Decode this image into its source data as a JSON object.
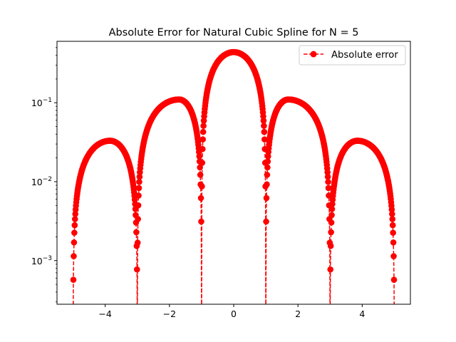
{
  "chart_data": {
    "type": "line",
    "title": "Absolute Error for Natural Cubic Spline for N = 5",
    "xlabel": "",
    "ylabel": "",
    "xlim": [
      -5.5,
      5.5
    ],
    "ylim": [
      0.00028,
      0.6
    ],
    "yscale": "log",
    "grid": false,
    "legend_position": "top-right",
    "x_ticks": [
      {
        "value": -4,
        "label": "−4"
      },
      {
        "value": -2,
        "label": "−2"
      },
      {
        "value": 0,
        "label": "0"
      },
      {
        "value": 2,
        "label": "2"
      },
      {
        "value": 4,
        "label": "4"
      }
    ],
    "y_ticks": [
      {
        "value": 0.001,
        "base": "10",
        "exp": "−3"
      },
      {
        "value": 0.01,
        "base": "10",
        "exp": "−2"
      },
      {
        "value": 0.1,
        "base": "10",
        "exp": "−1"
      }
    ],
    "series": [
      {
        "name": "Absolute error",
        "color": "#ff0000",
        "line_style": "dashed",
        "marker": "circle",
        "nodes": [
          -5,
          -3,
          -1,
          1,
          3,
          5
        ],
        "lobes": [
          {
            "from": -5,
            "to": -3,
            "peak_x": -3.85,
            "peak_y": 0.033
          },
          {
            "from": -3,
            "to": -1,
            "peak_x": -1.7,
            "peak_y": 0.11
          },
          {
            "from": -1,
            "to": 1,
            "peak_x": 0,
            "peak_y": 0.438
          },
          {
            "from": 1,
            "to": 3,
            "peak_x": 1.7,
            "peak_y": 0.11
          },
          {
            "from": 3,
            "to": 5,
            "peak_x": 3.85,
            "peak_y": 0.033
          }
        ],
        "sample_step": 0.01
      }
    ]
  }
}
